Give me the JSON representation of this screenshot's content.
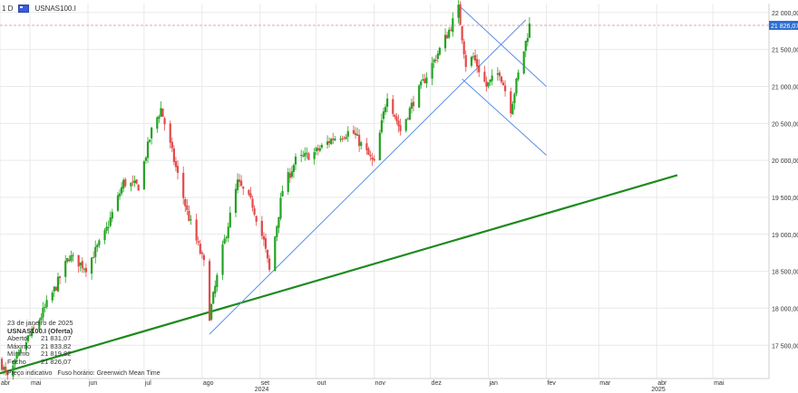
{
  "header": {
    "timeframe": "1 D",
    "symbol": "USNAS100.I"
  },
  "info_panel": {
    "date": "23 de janeiro de 2025",
    "instrument": "USNAS100.I (Oferta)",
    "rows": [
      {
        "label": "Aberto",
        "value": "21 831,07"
      },
      {
        "label": "Máximo",
        "value": "21 833,82"
      },
      {
        "label": "Mínimo",
        "value": "21 819,82"
      },
      {
        "label": "Fecho",
        "value": "21 826,07"
      }
    ]
  },
  "footer": {
    "price_note": "Preço indicativo",
    "timezone": "Fuso horário: Greenwich Mean Time"
  },
  "colors": {
    "up": "#22a322",
    "down": "#e34a4a",
    "trendline": "#1d8a1d",
    "channel": "#5b8fe6",
    "price_line": "#d98a8a",
    "price_label": "#2d6fd4"
  },
  "chart_data": {
    "type": "candlestick",
    "current_price": 21826.07,
    "current_price_label": "21 826,07",
    "ylim": [
      17050,
      22120
    ],
    "y_ticks": [
      {
        "v": 22000,
        "label": "22 000,00"
      },
      {
        "v": 21500,
        "label": "21 500,00"
      },
      {
        "v": 21000,
        "label": "21 000,00"
      },
      {
        "v": 20500,
        "label": "20 500,00"
      },
      {
        "v": 20000,
        "label": "20 000,00"
      },
      {
        "v": 19500,
        "label": "19 500,00"
      },
      {
        "v": 19000,
        "label": "19 000,00"
      },
      {
        "v": 18500,
        "label": "18 500,00"
      },
      {
        "v": 18000,
        "label": "18 000,00"
      },
      {
        "v": 17500,
        "label": "17 500,00"
      }
    ],
    "x_axis": {
      "start": "2024-04-15",
      "end": "2025-05-31",
      "months": [
        {
          "date": "2024-04-15",
          "label": "abr"
        },
        {
          "date": "2024-05-01",
          "label": "mai"
        },
        {
          "date": "2024-06-01",
          "label": "jun"
        },
        {
          "date": "2024-07-01",
          "label": "jul"
        },
        {
          "date": "2024-08-01",
          "label": "ago"
        },
        {
          "date": "2024-09-01",
          "label": "set"
        },
        {
          "date": "2024-10-01",
          "label": "out"
        },
        {
          "date": "2024-11-01",
          "label": "nov"
        },
        {
          "date": "2024-12-01",
          "label": "dez"
        },
        {
          "date": "2025-01-01",
          "label": "jan"
        },
        {
          "date": "2025-02-01",
          "label": "fev"
        },
        {
          "date": "2025-03-01",
          "label": "mar"
        },
        {
          "date": "2025-04-01",
          "label": "abr"
        },
        {
          "date": "2025-05-01",
          "label": "mai"
        }
      ],
      "years": [
        {
          "date": "2024-09-01",
          "label": "2024"
        },
        {
          "date": "2025-04-01",
          "label": "2025"
        }
      ]
    },
    "closes": [
      {
        "date": "2024-04-15",
        "v": 17300
      },
      {
        "date": "2024-04-19",
        "v": 17050
      },
      {
        "date": "2024-04-30",
        "v": 17600
      },
      {
        "date": "2024-05-03",
        "v": 17700
      },
      {
        "date": "2024-05-15",
        "v": 18300
      },
      {
        "date": "2024-05-22",
        "v": 18700
      },
      {
        "date": "2024-05-31",
        "v": 18550
      },
      {
        "date": "2024-06-10",
        "v": 19000
      },
      {
        "date": "2024-06-20",
        "v": 19700
      },
      {
        "date": "2024-06-28",
        "v": 19650
      },
      {
        "date": "2024-07-05",
        "v": 20400
      },
      {
        "date": "2024-07-10",
        "v": 20700
      },
      {
        "date": "2024-07-17",
        "v": 20000
      },
      {
        "date": "2024-07-24",
        "v": 19300
      },
      {
        "date": "2024-08-02",
        "v": 18600
      },
      {
        "date": "2024-08-05",
        "v": 17900
      },
      {
        "date": "2024-08-12",
        "v": 18800
      },
      {
        "date": "2024-08-20",
        "v": 19700
      },
      {
        "date": "2024-08-28",
        "v": 19400
      },
      {
        "date": "2024-09-03",
        "v": 18900
      },
      {
        "date": "2024-09-06",
        "v": 18500
      },
      {
        "date": "2024-09-13",
        "v": 19600
      },
      {
        "date": "2024-09-20",
        "v": 20000
      },
      {
        "date": "2024-09-30",
        "v": 20100
      },
      {
        "date": "2024-10-10",
        "v": 20300
      },
      {
        "date": "2024-10-20",
        "v": 20400
      },
      {
        "date": "2024-11-01",
        "v": 19950
      },
      {
        "date": "2024-11-08",
        "v": 20900
      },
      {
        "date": "2024-11-15",
        "v": 20400
      },
      {
        "date": "2024-11-22",
        "v": 20800
      },
      {
        "date": "2024-12-02",
        "v": 21300
      },
      {
        "date": "2024-12-10",
        "v": 21700
      },
      {
        "date": "2024-12-16",
        "v": 22050
      },
      {
        "date": "2024-12-20",
        "v": 21300
      },
      {
        "date": "2024-12-24",
        "v": 21400
      },
      {
        "date": "2024-12-31",
        "v": 21000
      },
      {
        "date": "2025-01-07",
        "v": 21200
      },
      {
        "date": "2025-01-13",
        "v": 20700
      },
      {
        "date": "2025-01-16",
        "v": 21050
      },
      {
        "date": "2025-01-21",
        "v": 21600
      },
      {
        "date": "2025-01-23",
        "v": 21826
      }
    ],
    "trendline_green": [
      {
        "date": "2024-04-15",
        "v": 17120
      },
      {
        "date": "2025-04-12",
        "v": 19800
      }
    ],
    "channel_lines": [
      [
        {
          "date": "2024-08-05",
          "v": 17650
        },
        {
          "date": "2025-01-21",
          "v": 21900
        }
      ],
      [
        {
          "date": "2024-12-16",
          "v": 22100
        },
        {
          "date": "2025-02-01",
          "v": 21000
        }
      ],
      [
        {
          "date": "2024-12-18",
          "v": 21100
        },
        {
          "date": "2025-02-01",
          "v": 20070
        }
      ]
    ]
  }
}
